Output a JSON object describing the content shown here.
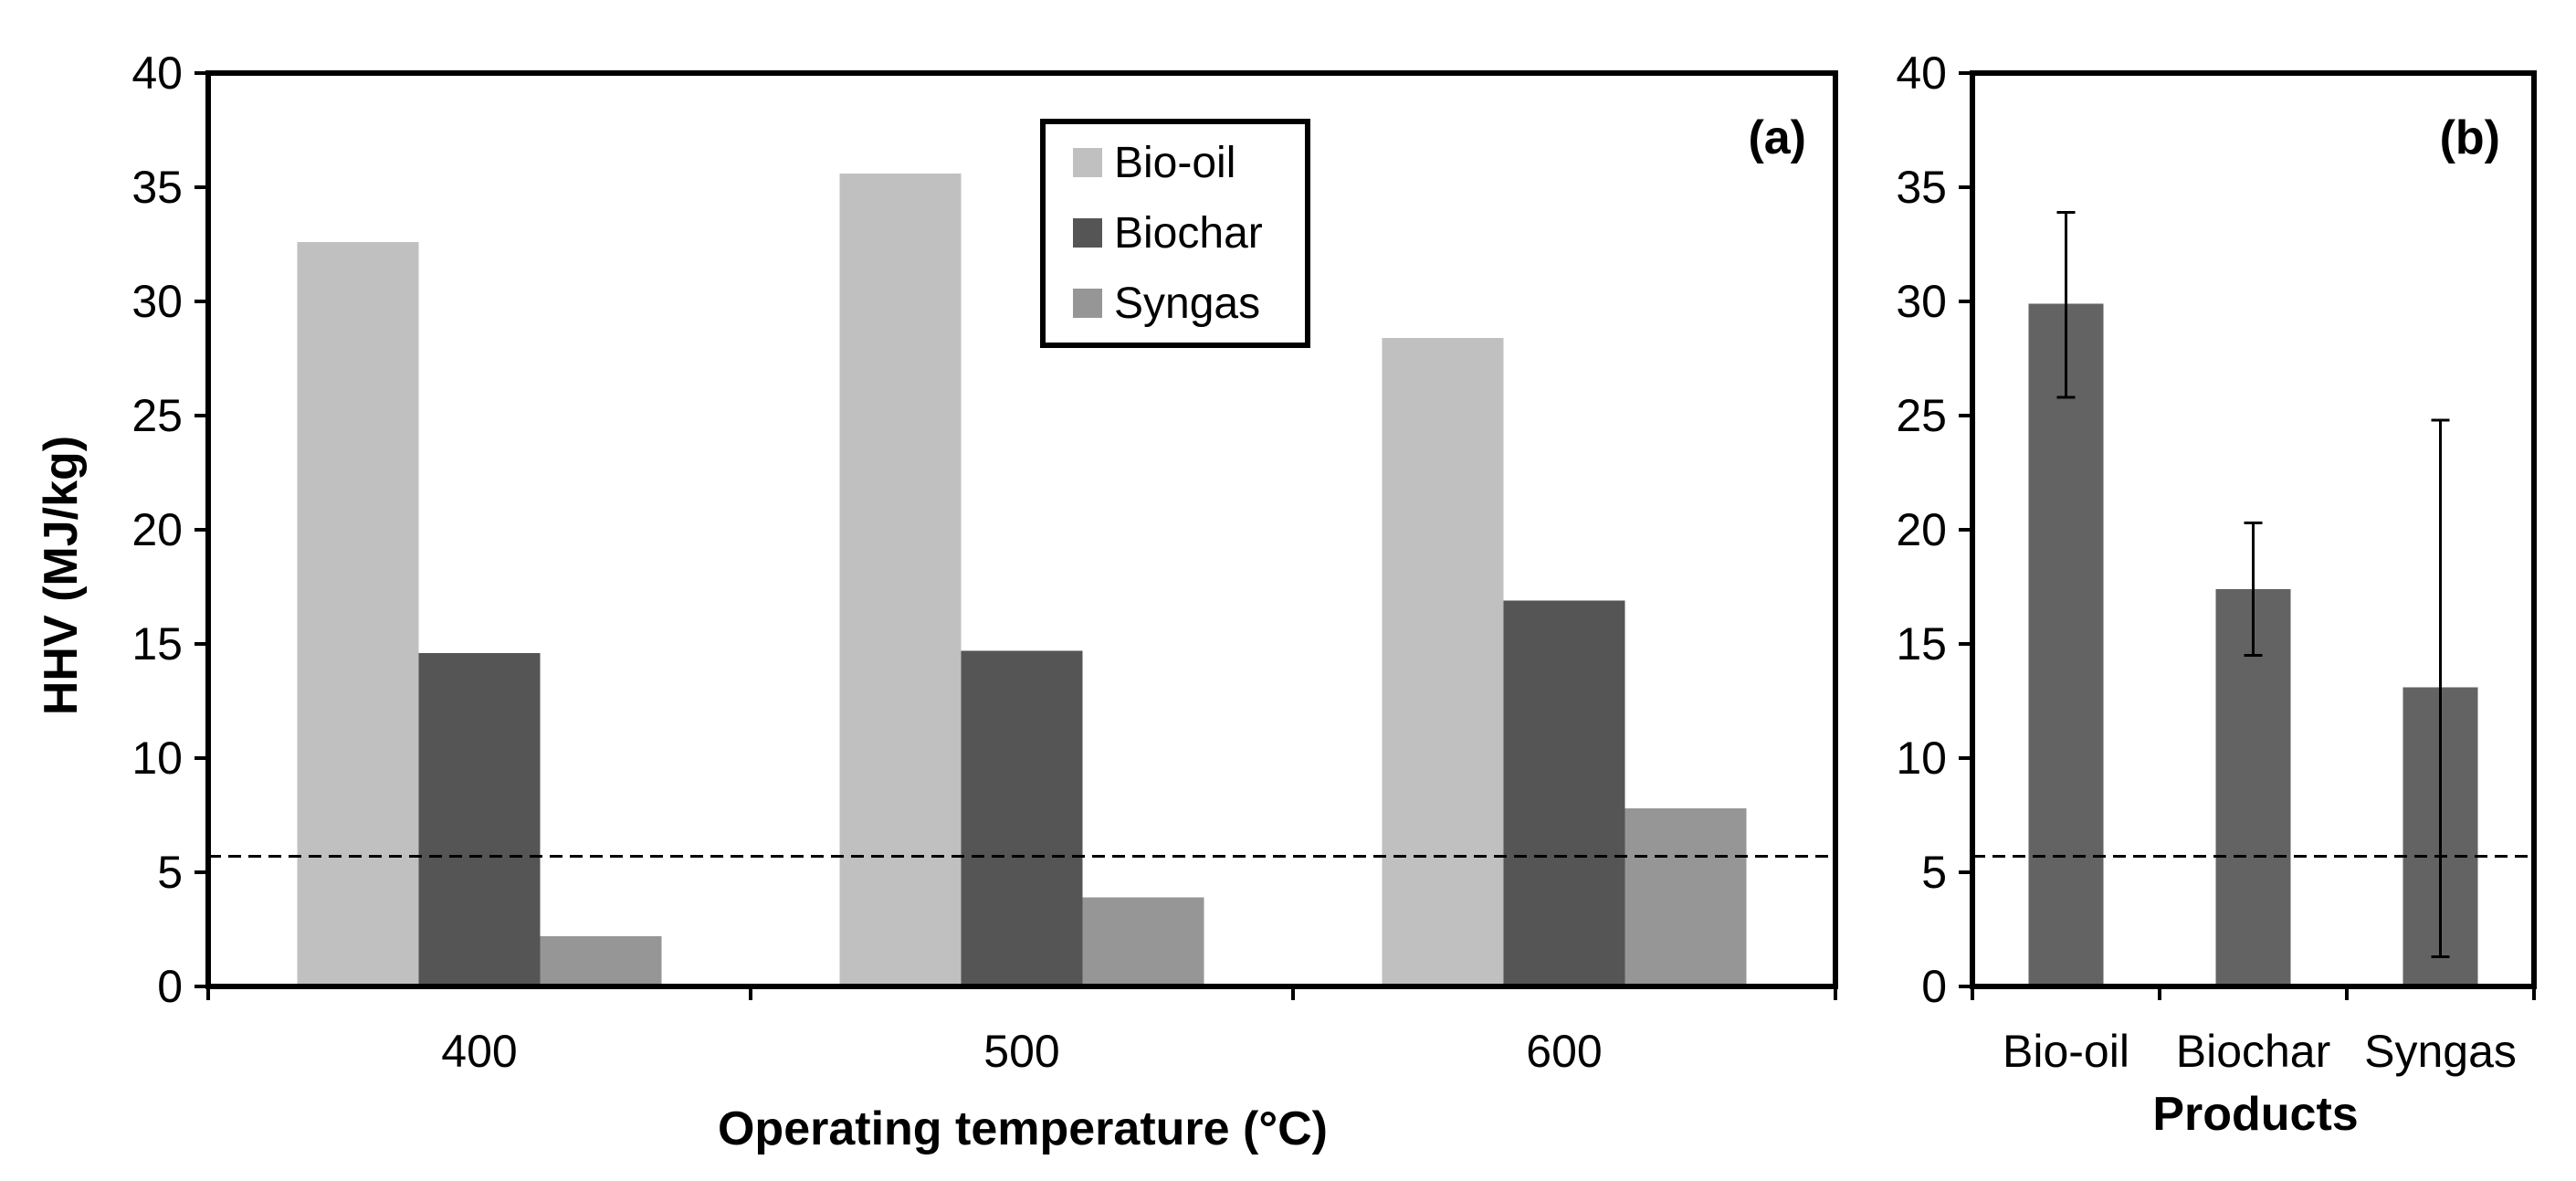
{
  "chart_data": [
    {
      "id": "a",
      "type": "bar",
      "panel_label": "(a)",
      "title": "",
      "xlabel": "Operating temperature (°C)",
      "ylabel": "HHV (MJ/kg)",
      "ylim": [
        0,
        40
      ],
      "yticks": [
        0,
        5,
        10,
        15,
        20,
        25,
        30,
        35,
        40
      ],
      "categories": [
        "400",
        "500",
        "600"
      ],
      "series": [
        {
          "name": "Bio-oil",
          "color": "#c0c0c0",
          "values": [
            32.6,
            35.6,
            28.4
          ]
        },
        {
          "name": "Biochar",
          "color": "#555555",
          "values": [
            14.6,
            14.7,
            16.9
          ]
        },
        {
          "name": "Syngas",
          "color": "#969696",
          "values": [
            2.2,
            3.9,
            7.8
          ]
        }
      ],
      "reference_line": {
        "value": 5.7,
        "style": "dashed"
      },
      "legend": {
        "placement": "top-center",
        "entries": [
          "Bio-oil",
          "Biochar",
          "Syngas"
        ]
      },
      "grid": false
    },
    {
      "id": "b",
      "type": "bar",
      "panel_label": "(b)",
      "title": "",
      "xlabel": "Products",
      "ylabel": "",
      "ylim": [
        0,
        40
      ],
      "yticks": [
        0,
        5,
        10,
        15,
        20,
        25,
        30,
        35,
        40
      ],
      "categories": [
        "Bio-oil",
        "Biochar",
        "Syngas"
      ],
      "values": [
        29.9,
        17.4,
        13.1
      ],
      "error_low": [
        25.8,
        14.5,
        1.3
      ],
      "error_high": [
        33.9,
        20.3,
        24.8
      ],
      "color": "#636363",
      "reference_line": {
        "value": 5.7,
        "style": "dashed"
      },
      "grid": false
    }
  ]
}
